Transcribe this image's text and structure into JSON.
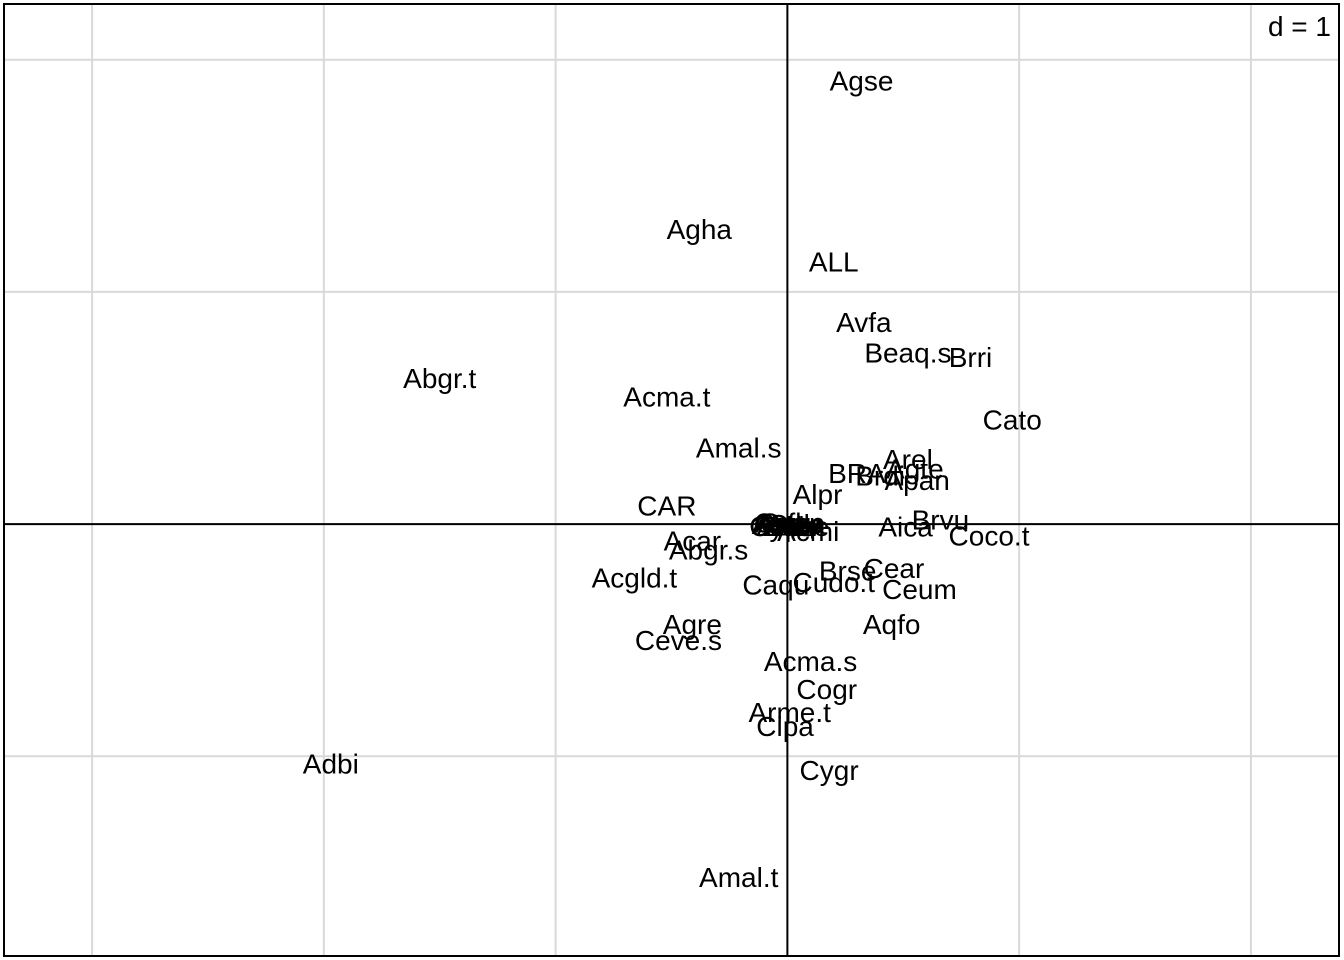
{
  "chart_data": {
    "type": "scatter",
    "title": "",
    "xlabel": "",
    "ylabel": "",
    "scale_label": "d = 1",
    "xlim": [
      -3.38,
      2.38
    ],
    "ylim": [
      -1.86,
      2.24
    ],
    "grid_step": 1,
    "grid": true,
    "origin_axes": true,
    "points": [
      {
        "label": "Agse",
        "x": 0.32,
        "y": 1.91
      },
      {
        "label": "Agha",
        "x": -0.38,
        "y": 1.27
      },
      {
        "label": "ALL",
        "x": 0.2,
        "y": 1.13
      },
      {
        "label": "Avfa",
        "x": 0.33,
        "y": 0.87
      },
      {
        "label": "Beaq.s",
        "x": 0.52,
        "y": 0.74
      },
      {
        "label": "Brri",
        "x": 0.79,
        "y": 0.72
      },
      {
        "label": "Abgr.t",
        "x": -1.5,
        "y": 0.63
      },
      {
        "label": "Acma.t",
        "x": -0.52,
        "y": 0.55
      },
      {
        "label": "Cato",
        "x": 0.97,
        "y": 0.45
      },
      {
        "label": "Amal.s",
        "x": -0.21,
        "y": 0.33
      },
      {
        "label": "Arel",
        "x": 0.52,
        "y": 0.28
      },
      {
        "label": "Agte",
        "x": 0.55,
        "y": 0.24
      },
      {
        "label": "BRA",
        "x": 0.3,
        "y": 0.22
      },
      {
        "label": "Brdi",
        "x": 0.4,
        "y": 0.21
      },
      {
        "label": "Apan",
        "x": 0.56,
        "y": 0.19
      },
      {
        "label": "Alpr",
        "x": 0.13,
        "y": 0.13
      },
      {
        "label": "CAR",
        "x": -0.52,
        "y": 0.08
      },
      {
        "label": "Brvu",
        "x": 0.66,
        "y": 0.02
      },
      {
        "label": "Aica",
        "x": 0.51,
        "y": -0.01
      },
      {
        "label": "Coco.t",
        "x": 0.87,
        "y": -0.05
      },
      {
        "label": "Acmi",
        "x": 0.09,
        "y": -0.03
      },
      {
        "label": "Acar",
        "x": -0.41,
        "y": -0.07
      },
      {
        "label": "Abgr.s",
        "x": -0.34,
        "y": -0.11
      },
      {
        "label": "Acgld.t",
        "x": -0.66,
        "y": -0.23
      },
      {
        "label": "Brse",
        "x": 0.26,
        "y": -0.2
      },
      {
        "label": "Cear",
        "x": 0.46,
        "y": -0.19
      },
      {
        "label": "Cudo.t",
        "x": 0.2,
        "y": -0.25
      },
      {
        "label": "Caqu",
        "x": -0.05,
        "y": -0.26
      },
      {
        "label": "Ceum",
        "x": 0.57,
        "y": -0.28
      },
      {
        "label": "Aqfo",
        "x": 0.45,
        "y": -0.43
      },
      {
        "label": "Agre",
        "x": -0.41,
        "y": -0.43
      },
      {
        "label": "Ceve.s",
        "x": -0.47,
        "y": -0.5
      },
      {
        "label": "Acma.s",
        "x": 0.1,
        "y": -0.59
      },
      {
        "label": "Cogr",
        "x": 0.17,
        "y": -0.71
      },
      {
        "label": "Arme.t",
        "x": 0.01,
        "y": -0.81
      },
      {
        "label": "Cipa",
        "x": -0.01,
        "y": -0.87
      },
      {
        "label": "Adbi",
        "x": -1.97,
        "y": -1.03
      },
      {
        "label": "Cygr",
        "x": 0.18,
        "y": -1.06
      },
      {
        "label": "Amal.t",
        "x": -0.21,
        "y": -1.52
      }
    ],
    "dense_cluster": {
      "x": 0.0,
      "y": 0.0,
      "labels": [
        "Cyfe",
        "Arte",
        "Cepu",
        "Avbr",
        "Cala",
        "Asfl",
        "Copo",
        "Amco",
        "Cusp",
        "Bahe"
      ]
    }
  }
}
